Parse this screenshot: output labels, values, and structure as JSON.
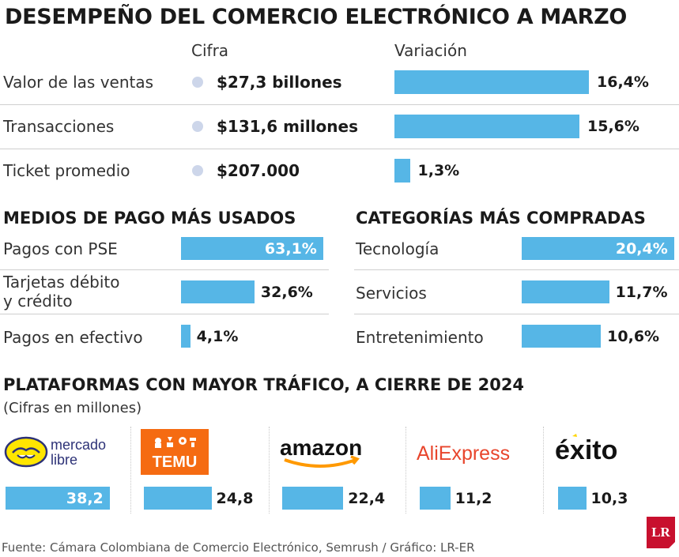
{
  "title": "DESEMPEÑO DEL COMERCIO ELECTRÓNICO A MARZO",
  "performance": {
    "col_figure": "Cifra",
    "col_variation": "Variación",
    "rows": [
      {
        "label": "Valor de las ventas",
        "figure": "$27,3 billones",
        "variation": 16.4,
        "variation_label": "16,4%"
      },
      {
        "label": "Transacciones",
        "figure": "$131,6 millones",
        "variation": 15.6,
        "variation_label": "15,6%"
      },
      {
        "label": "Ticket promedio",
        "figure": "$207.000",
        "variation": 1.3,
        "variation_label": "1,3%"
      }
    ]
  },
  "payment": {
    "title": "MEDIOS DE PAGO MÁS USADOS",
    "rows": [
      {
        "label_lines": [
          "Pagos con PSE"
        ],
        "value": 63.1,
        "label": "63,1%"
      },
      {
        "label_lines": [
          "Tarjetas débito",
          "y crédito"
        ],
        "value": 32.6,
        "label": "32,6%"
      },
      {
        "label_lines": [
          "Pagos en efectivo"
        ],
        "value": 4.1,
        "label": "4,1%"
      }
    ]
  },
  "categories": {
    "title": "CATEGORÍAS MÁS COMPRADAS",
    "rows": [
      {
        "label": "Tecnología",
        "value": 20.4,
        "label_value": "20,4%"
      },
      {
        "label": "Servicios",
        "value": 11.7,
        "label_value": "11,7%"
      },
      {
        "label": "Entretenimiento",
        "value": 10.6,
        "label_value": "10,6%"
      }
    ]
  },
  "platforms": {
    "title": "PLATAFORMAS CON MAYOR TRÁFICO, A CIERRE DE 2024",
    "subtitle": "(Cifras en millones)",
    "items": [
      {
        "name": "Mercado Libre",
        "logo_lines": [
          "mercado",
          "libre"
        ],
        "value": 38.2,
        "label": "38,2",
        "color": "#ffe600"
      },
      {
        "name": "Temu",
        "logo_text": "TEMU",
        "value": 24.8,
        "label": "24,8",
        "color": "#f56b12"
      },
      {
        "name": "Amazon",
        "logo_text": "amazon",
        "value": 22.4,
        "label": "22,4",
        "color": "#ff9900"
      },
      {
        "name": "AliExpress",
        "logo_text": "AliExpress",
        "value": 11.2,
        "label": "11,2",
        "color": "#e8452c"
      },
      {
        "name": "Éxito",
        "logo_text": "éxito",
        "value": 10.3,
        "label": "10,3",
        "color": "#ffd500"
      }
    ]
  },
  "source": "Fuente: Cámara Colombiana de Comercio Electrónico, Semrush / Gráfico: LR-ER",
  "brand": "LR",
  "colors": {
    "bar": "#56b6e6",
    "dot": "#cdd6ea",
    "brand_red": "#c8102e"
  },
  "chart_data": [
    {
      "type": "bar",
      "categories": [
        "Valor de las ventas",
        "Transacciones",
        "Ticket promedio"
      ],
      "values": [
        16.4,
        15.6,
        1.3
      ],
      "ylabel": "Variación"
    },
    {
      "type": "bar",
      "title": "MEDIOS DE PAGO MÁS USADOS",
      "categories": [
        "Pagos con PSE",
        "Tarjetas débito y crédito",
        "Pagos en efectivo"
      ],
      "values": [
        63.1,
        32.6,
        4.1
      ]
    },
    {
      "type": "bar",
      "title": "CATEGORÍAS MÁS COMPRADAS",
      "categories": [
        "Tecnología",
        "Servicios",
        "Entretenimiento"
      ],
      "values": [
        20.4,
        11.7,
        10.6
      ]
    },
    {
      "type": "bar",
      "title": "PLATAFORMAS CON MAYOR TRÁFICO, A CIERRE DE 2024",
      "subtitle": "(Cifras en millones)",
      "categories": [
        "Mercado Libre",
        "Temu",
        "Amazon",
        "AliExpress",
        "Éxito"
      ],
      "values": [
        38.2,
        24.8,
        22.4,
        11.2,
        10.3
      ]
    }
  ]
}
